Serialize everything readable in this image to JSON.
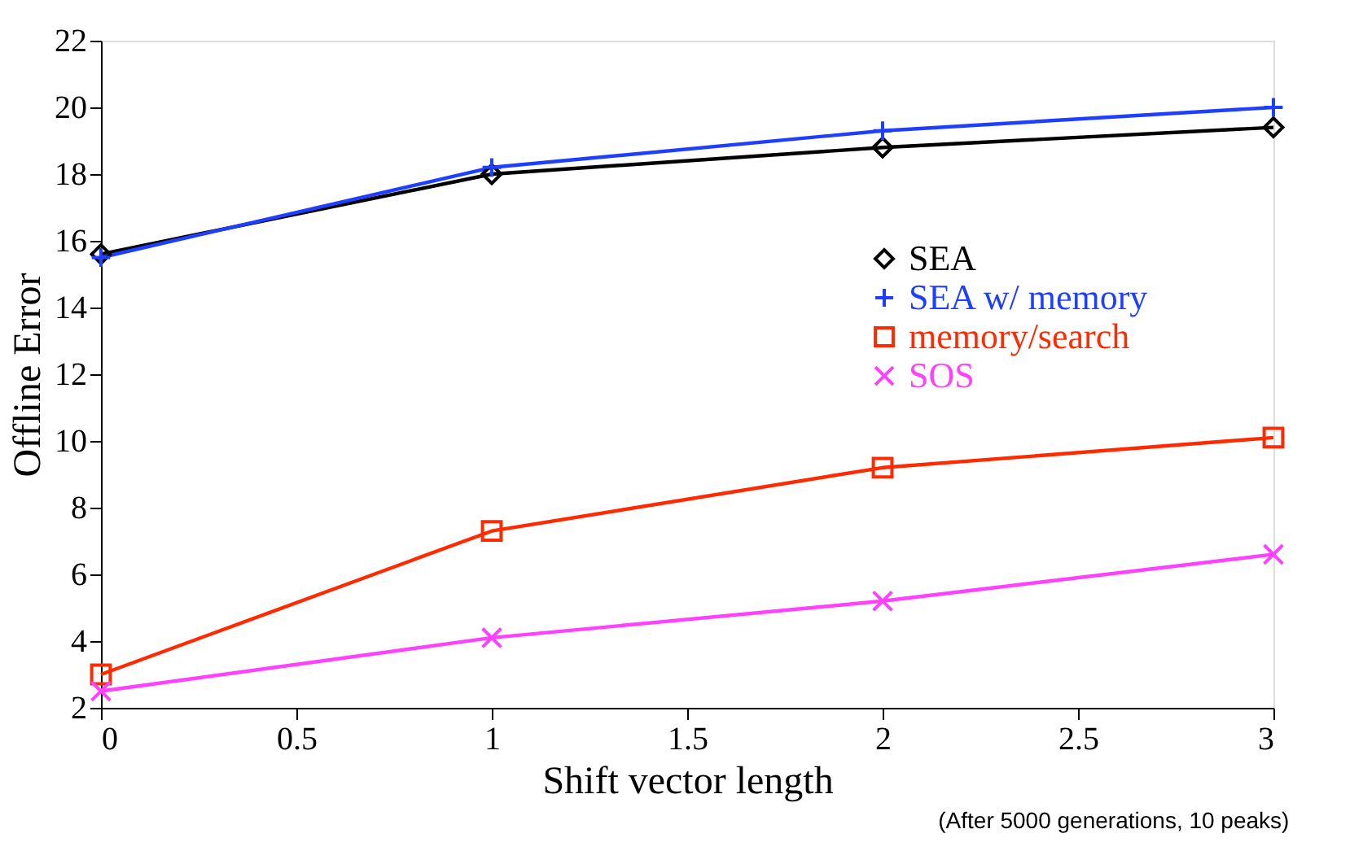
{
  "chart_data": {
    "type": "line",
    "xlabel": "Shift vector length",
    "ylabel": "Offline Error",
    "x": [
      0,
      1,
      2,
      3
    ],
    "series": [
      {
        "name": "SEA",
        "color": "#000000",
        "marker": "diamond",
        "values": [
          15.6,
          18.0,
          18.8,
          19.4
        ]
      },
      {
        "name": "SEA w/ memory",
        "color": "#1f3fff",
        "marker": "cross",
        "values": [
          15.5,
          18.2,
          19.3,
          20.0
        ]
      },
      {
        "name": "memory/search",
        "color": "#ff2a00",
        "marker": "square",
        "values": [
          3.0,
          7.3,
          9.2,
          10.1
        ]
      },
      {
        "name": "SOS",
        "color": "#ff40ff",
        "marker": "x",
        "values": [
          2.5,
          4.1,
          5.2,
          6.6
        ]
      }
    ],
    "xlim": [
      0,
      3
    ],
    "xticks": [
      0,
      0.5,
      1,
      1.5,
      2,
      2.5,
      3
    ],
    "ylim": [
      2,
      22
    ],
    "yticks": [
      2,
      4,
      6,
      8,
      10,
      12,
      14,
      16,
      18,
      20,
      22
    ],
    "grid": false,
    "legend": "right",
    "line_style": "solid",
    "annotations": [
      "(After 5000 generations, 10 peaks)"
    ]
  }
}
